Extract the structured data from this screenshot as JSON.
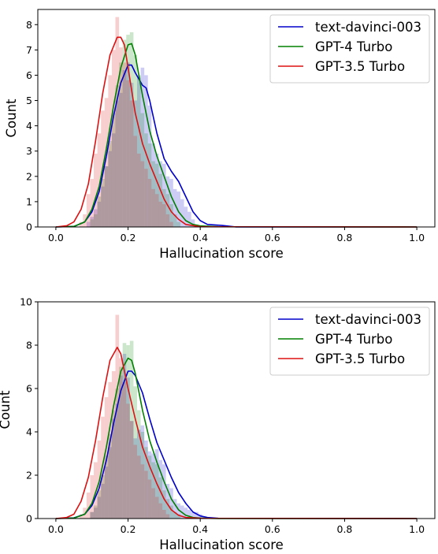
{
  "chart_data": [
    {
      "type": "bar",
      "xlabel": "Hallucination score",
      "ylabel": "Count",
      "xlim": [
        -0.05,
        1.05
      ],
      "ylim": [
        0,
        8.6
      ],
      "xticks": [
        0.0,
        0.2,
        0.4,
        0.6,
        0.8,
        1.0
      ],
      "xtick_labels": [
        "0.0",
        "0.2",
        "0.4",
        "0.6",
        "0.8",
        "1.0"
      ],
      "yticks": [
        0,
        1,
        2,
        3,
        4,
        5,
        6,
        7,
        8
      ],
      "ytick_labels": [
        "0",
        "1",
        "2",
        "3",
        "4",
        "5",
        "6",
        "7",
        "8"
      ],
      "legend_position": "top-right",
      "series": [
        {
          "name": "text-davinci-003",
          "color": "#0000cc",
          "bins_x": [
            0.09,
            0.1,
            0.11,
            0.12,
            0.13,
            0.14,
            0.15,
            0.16,
            0.17,
            0.18,
            0.19,
            0.2,
            0.21,
            0.22,
            0.23,
            0.24,
            0.25,
            0.26,
            0.27,
            0.28,
            0.29,
            0.3,
            0.31,
            0.32,
            0.33,
            0.34,
            0.35,
            0.36,
            0.37,
            0.38,
            0.39
          ],
          "bins_y": [
            0.2,
            0.4,
            0.7,
            1.0,
            1.6,
            2.4,
            3.0,
            3.7,
            5.0,
            5.3,
            6.2,
            6.5,
            5.7,
            5.0,
            5.9,
            6.3,
            6.0,
            4.8,
            3.3,
            2.9,
            2.6,
            2.5,
            2.0,
            1.9,
            1.5,
            1.4,
            1.1,
            0.8,
            0.6,
            0.3,
            0.1
          ],
          "kde_x": [
            0.0,
            0.05,
            0.08,
            0.1,
            0.12,
            0.14,
            0.16,
            0.18,
            0.2,
            0.21,
            0.22,
            0.24,
            0.25,
            0.26,
            0.28,
            0.3,
            0.32,
            0.34,
            0.36,
            0.38,
            0.4,
            0.42,
            0.44,
            0.46,
            0.48,
            0.5,
            1.0
          ],
          "kde_y": [
            0,
            0.02,
            0.2,
            0.6,
            1.4,
            2.8,
            4.4,
            5.7,
            6.4,
            6.4,
            6.1,
            5.6,
            5.5,
            5.0,
            3.7,
            2.7,
            2.2,
            1.8,
            1.2,
            0.6,
            0.25,
            0.1,
            0.08,
            0.06,
            0.03,
            0,
            0
          ]
        },
        {
          "name": "GPT-4 Turbo",
          "color": "#008000",
          "bins_x": [
            0.1,
            0.11,
            0.12,
            0.13,
            0.14,
            0.15,
            0.16,
            0.17,
            0.18,
            0.19,
            0.2,
            0.21,
            0.22,
            0.23,
            0.24,
            0.25,
            0.26,
            0.27,
            0.28,
            0.29,
            0.3,
            0.31,
            0.32,
            0.33,
            0.34
          ],
          "bins_y": [
            0.3,
            0.5,
            1.2,
            1.9,
            2.4,
            3.4,
            4.5,
            5.6,
            6.5,
            7.4,
            7.6,
            7.7,
            6.8,
            6.0,
            4.5,
            3.7,
            3.3,
            2.6,
            2.5,
            2.1,
            1.5,
            1.3,
            0.9,
            0.5,
            0.2
          ],
          "kde_x": [
            0.0,
            0.05,
            0.08,
            0.1,
            0.12,
            0.14,
            0.16,
            0.18,
            0.2,
            0.21,
            0.22,
            0.24,
            0.26,
            0.28,
            0.3,
            0.32,
            0.34,
            0.36,
            0.38,
            0.4,
            0.45,
            1.0
          ],
          "kde_y": [
            0,
            0.02,
            0.2,
            0.7,
            1.6,
            3.1,
            4.8,
            6.3,
            7.2,
            7.25,
            6.8,
            5.2,
            3.8,
            2.8,
            2.0,
            1.2,
            0.6,
            0.25,
            0.1,
            0.04,
            0.01,
            0
          ]
        },
        {
          "name": "GPT-3.5 Turbo",
          "color": "#dd1111",
          "bins_x": [
            0.07,
            0.08,
            0.09,
            0.1,
            0.11,
            0.12,
            0.13,
            0.14,
            0.15,
            0.16,
            0.17,
            0.18,
            0.19,
            0.2,
            0.21,
            0.22,
            0.23,
            0.24,
            0.25,
            0.26,
            0.27,
            0.28,
            0.29,
            0.3,
            0.31,
            0.32
          ],
          "bins_y": [
            0.2,
            0.5,
            1.3,
            1.9,
            2.9,
            3.7,
            4.6,
            5.1,
            6.0,
            7.0,
            8.3,
            7.1,
            6.5,
            5.8,
            5.0,
            3.6,
            2.9,
            2.6,
            2.3,
            1.9,
            1.5,
            1.3,
            1.0,
            0.9,
            0.5,
            0.2
          ],
          "kde_x": [
            0.0,
            0.03,
            0.05,
            0.07,
            0.09,
            0.11,
            0.13,
            0.15,
            0.17,
            0.18,
            0.19,
            0.2,
            0.22,
            0.24,
            0.26,
            0.28,
            0.3,
            0.32,
            0.34,
            0.36,
            0.4,
            1.0
          ],
          "kde_y": [
            0,
            0.05,
            0.2,
            0.7,
            1.7,
            3.4,
            5.3,
            6.8,
            7.5,
            7.5,
            7.2,
            6.3,
            4.5,
            3.3,
            2.5,
            1.8,
            1.1,
            0.6,
            0.3,
            0.1,
            0.01,
            0
          ]
        }
      ]
    },
    {
      "type": "bar",
      "xlabel": "Hallucination score",
      "ylabel": "Count",
      "xlim": [
        -0.05,
        1.05
      ],
      "ylim": [
        0,
        10
      ],
      "xticks": [
        0.0,
        0.2,
        0.4,
        0.6,
        0.8,
        1.0
      ],
      "xtick_labels": [
        "0.0",
        "0.2",
        "0.4",
        "0.6",
        "0.8",
        "1.0"
      ],
      "yticks": [
        0,
        2,
        4,
        6,
        8,
        10
      ],
      "ytick_labels": [
        "0",
        "2",
        "4",
        "6",
        "8",
        "10"
      ],
      "legend_position": "top-right",
      "series": [
        {
          "name": "text-davinci-003",
          "color": "#0000cc",
          "bins_x": [
            0.1,
            0.11,
            0.12,
            0.13,
            0.14,
            0.15,
            0.16,
            0.17,
            0.18,
            0.19,
            0.2,
            0.21,
            0.22,
            0.23,
            0.24,
            0.25,
            0.26,
            0.27,
            0.28,
            0.29,
            0.3,
            0.31,
            0.32,
            0.33,
            0.34,
            0.35,
            0.36,
            0.37,
            0.38,
            0.39,
            0.4,
            0.41
          ],
          "bins_y": [
            0.3,
            0.5,
            1.0,
            1.6,
            2.4,
            3.3,
            4.6,
            5.3,
            6.6,
            7.6,
            6.5,
            4.5,
            3.7,
            4.1,
            4.3,
            3.6,
            3.1,
            3.0,
            3.2,
            2.7,
            2.5,
            1.6,
            1.4,
            0.9,
            0.7,
            0.6,
            0.5,
            0.4,
            0.3,
            0.3,
            0.2,
            0.1
          ],
          "kde_x": [
            0.0,
            0.05,
            0.08,
            0.1,
            0.12,
            0.14,
            0.16,
            0.18,
            0.2,
            0.21,
            0.22,
            0.24,
            0.26,
            0.28,
            0.3,
            0.32,
            0.34,
            0.36,
            0.38,
            0.4,
            0.42,
            0.45,
            1.0
          ],
          "kde_y": [
            0,
            0.03,
            0.2,
            0.6,
            1.4,
            2.7,
            4.4,
            5.9,
            6.8,
            6.8,
            6.6,
            5.8,
            4.6,
            3.5,
            2.7,
            1.9,
            1.2,
            0.7,
            0.3,
            0.12,
            0.05,
            0.01,
            0
          ]
        },
        {
          "name": "GPT-4 Turbo",
          "color": "#008000",
          "bins_x": [
            0.1,
            0.11,
            0.12,
            0.13,
            0.14,
            0.15,
            0.16,
            0.17,
            0.18,
            0.19,
            0.2,
            0.21,
            0.22,
            0.23,
            0.24,
            0.25,
            0.26,
            0.27,
            0.28,
            0.29,
            0.3,
            0.31,
            0.32,
            0.33,
            0.34
          ],
          "bins_y": [
            0.3,
            0.6,
            1.3,
            2.0,
            2.9,
            3.9,
            5.0,
            6.0,
            7.0,
            8.1,
            8.0,
            8.2,
            6.1,
            5.0,
            4.0,
            3.3,
            2.9,
            2.6,
            2.5,
            1.9,
            1.3,
            0.9,
            0.6,
            0.3,
            0.2
          ],
          "kde_x": [
            0.0,
            0.05,
            0.08,
            0.1,
            0.12,
            0.14,
            0.16,
            0.18,
            0.2,
            0.21,
            0.22,
            0.24,
            0.26,
            0.28,
            0.3,
            0.32,
            0.34,
            0.36,
            0.38,
            0.4,
            0.45,
            1.0
          ],
          "kde_y": [
            0,
            0.02,
            0.2,
            0.7,
            1.7,
            3.3,
            5.2,
            6.8,
            7.4,
            7.3,
            6.7,
            5.0,
            3.6,
            2.6,
            1.7,
            0.9,
            0.4,
            0.15,
            0.05,
            0.02,
            0,
            0
          ]
        },
        {
          "name": "GPT-3.5 Turbo",
          "color": "#dd1111",
          "bins_x": [
            0.07,
            0.08,
            0.09,
            0.1,
            0.11,
            0.12,
            0.13,
            0.14,
            0.15,
            0.16,
            0.17,
            0.18,
            0.19,
            0.2,
            0.21,
            0.22,
            0.23,
            0.24,
            0.25,
            0.26,
            0.27,
            0.28,
            0.29,
            0.3,
            0.31
          ],
          "bins_y": [
            0.2,
            0.5,
            1.2,
            2.0,
            2.6,
            3.6,
            4.7,
            5.6,
            6.3,
            6.8,
            9.4,
            7.4,
            6.3,
            5.3,
            4.5,
            3.4,
            2.9,
            2.5,
            2.2,
            1.8,
            1.4,
            1.0,
            0.7,
            0.4,
            0.2
          ],
          "kde_x": [
            0.0,
            0.03,
            0.05,
            0.07,
            0.09,
            0.11,
            0.13,
            0.15,
            0.17,
            0.18,
            0.19,
            0.2,
            0.22,
            0.24,
            0.26,
            0.28,
            0.3,
            0.32,
            0.34,
            0.36,
            0.4,
            1.0
          ],
          "kde_y": [
            0,
            0.05,
            0.2,
            0.8,
            1.9,
            3.6,
            5.6,
            7.3,
            7.9,
            7.6,
            6.8,
            6.0,
            4.6,
            3.3,
            2.4,
            1.6,
            0.9,
            0.4,
            0.15,
            0.05,
            0.01,
            0
          ]
        }
      ]
    }
  ]
}
